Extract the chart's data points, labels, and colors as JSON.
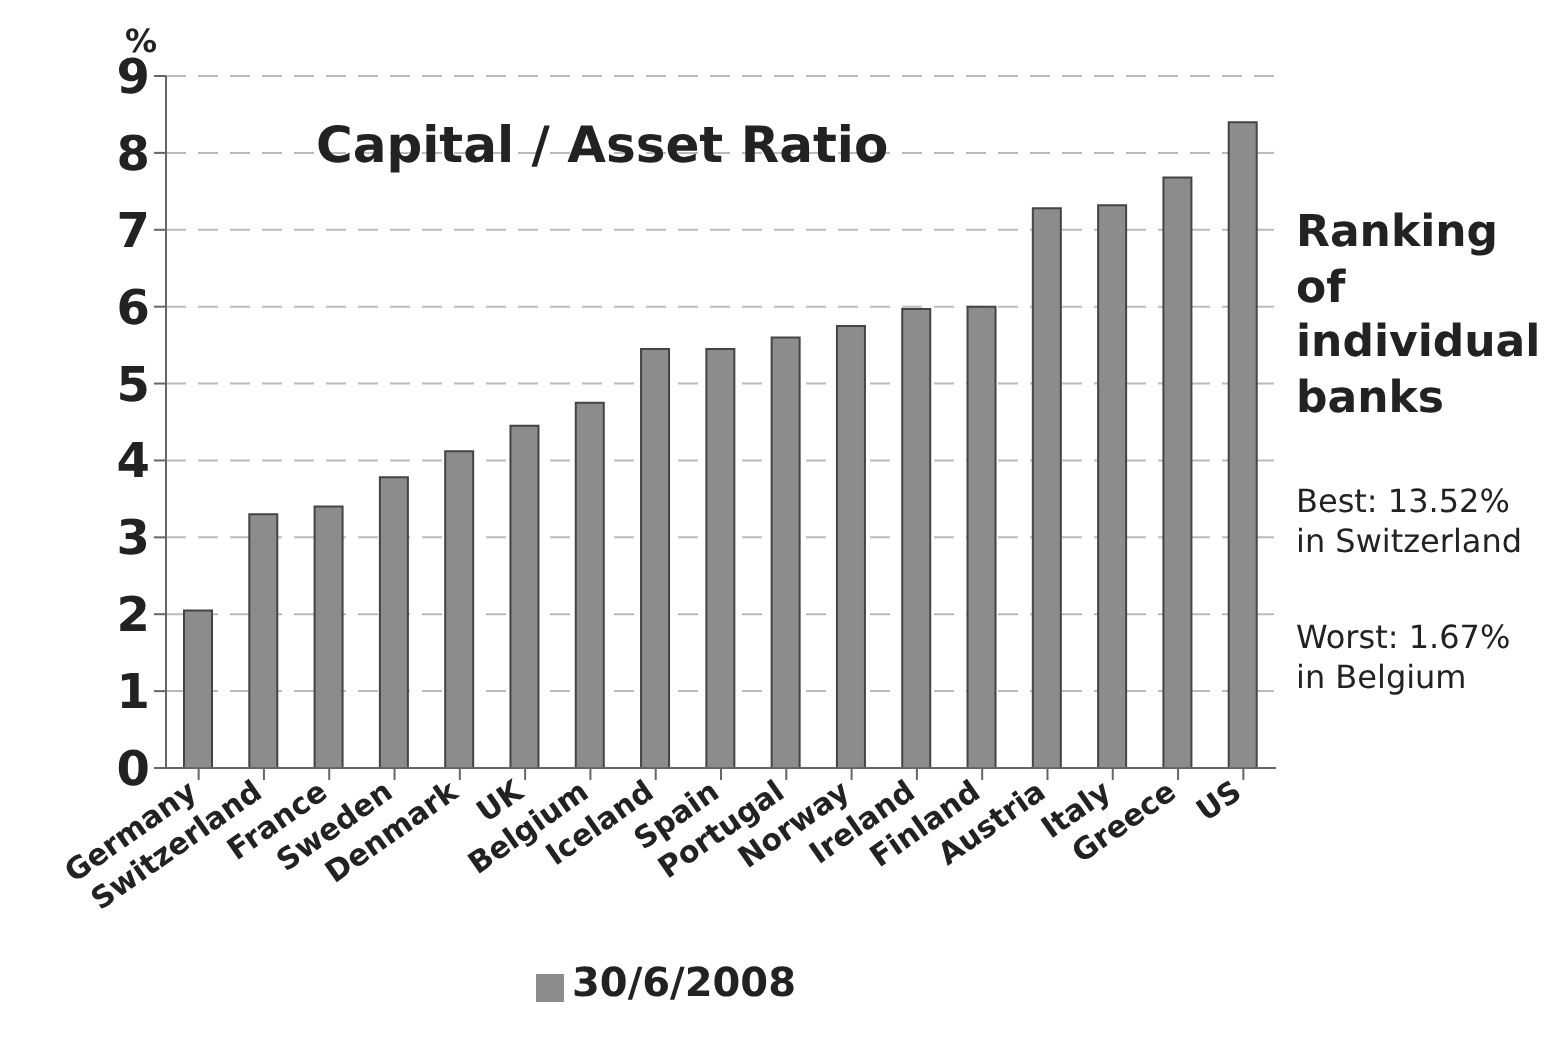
{
  "chart_data": {
    "type": "bar",
    "title": "Capital / Asset Ratio",
    "ylabel": "%",
    "categories": [
      "Germany",
      "Switzerland",
      "France",
      "Sweden",
      "Denmark",
      "UK",
      "Belgium",
      "Iceland",
      "Spain",
      "Portugal",
      "Norway",
      "Ireland",
      "Finland",
      "Austria",
      "Italy",
      "Greece",
      "US"
    ],
    "series": [
      {
        "name": "30/6/2008",
        "color": "#8c8c8c",
        "values": [
          2.05,
          3.3,
          3.4,
          3.78,
          4.12,
          4.45,
          4.75,
          5.45,
          5.45,
          5.6,
          5.75,
          5.97,
          6.0,
          7.28,
          7.32,
          7.68,
          8.4
        ]
      }
    ],
    "ylim": [
      0,
      9
    ],
    "yticks": [
      0,
      1,
      2,
      3,
      4,
      5,
      6,
      7,
      8,
      9
    ],
    "grid": "y",
    "legend": "bottom",
    "annotations": [
      "Ranking of individual banks",
      "Best: 13.52% in Switzerland",
      "Worst: 1.67% in Belgium"
    ]
  }
}
